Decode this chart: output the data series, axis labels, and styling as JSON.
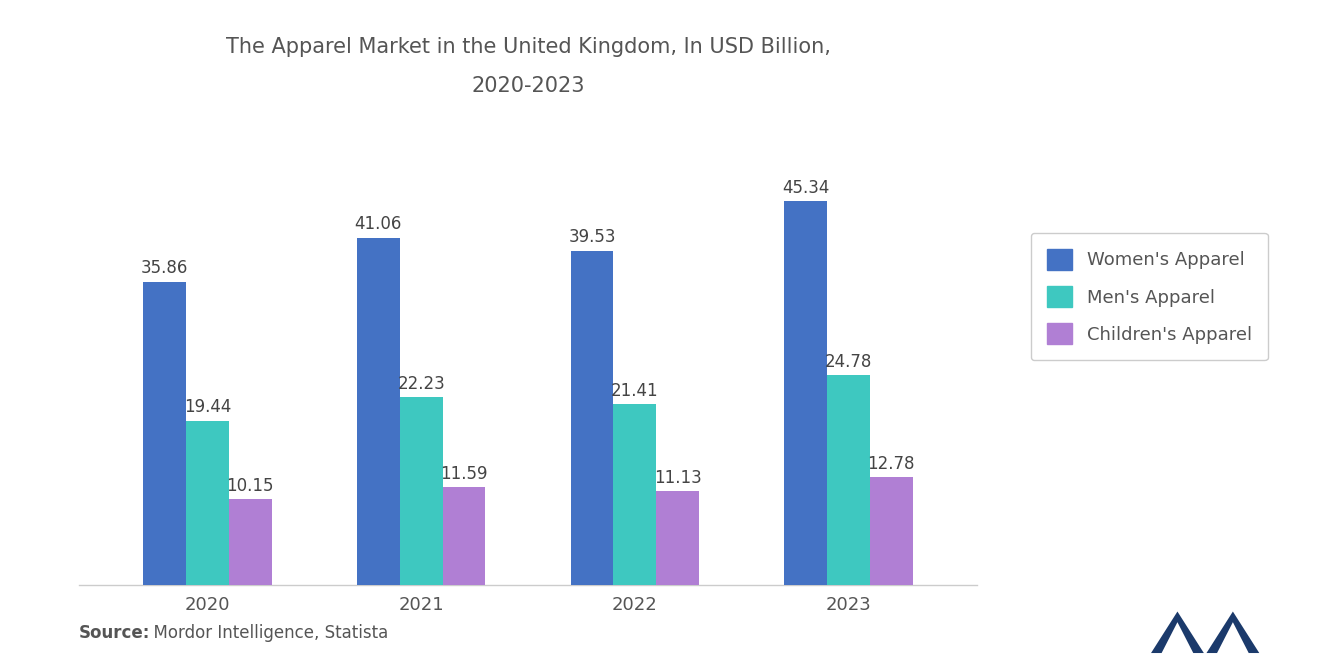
{
  "title_line1": "The Apparel Market in the United Kingdom, In USD Billion,",
  "title_line2": "2020-2023",
  "years": [
    "2020",
    "2021",
    "2022",
    "2023"
  ],
  "womens": [
    35.86,
    41.06,
    39.53,
    45.34
  ],
  "mens": [
    19.44,
    22.23,
    21.41,
    24.78
  ],
  "childrens": [
    10.15,
    11.59,
    11.13,
    12.78
  ],
  "colors": {
    "womens": "#4472C4",
    "mens": "#3EC8C0",
    "childrens": "#B07FD4"
  },
  "legend_labels": [
    "Women's Apparel",
    "Men's Apparel",
    "Children's Apparel"
  ],
  "source_bold": "Source:",
  "source_rest": "  Mordor Intelligence, Statista",
  "ylim": [
    0,
    55
  ],
  "bar_width": 0.2,
  "background_color": "#FFFFFF",
  "title_fontsize": 15,
  "label_fontsize": 12,
  "tick_fontsize": 13,
  "legend_fontsize": 13,
  "source_fontsize": 12,
  "logo_color": "#1B3A6B"
}
